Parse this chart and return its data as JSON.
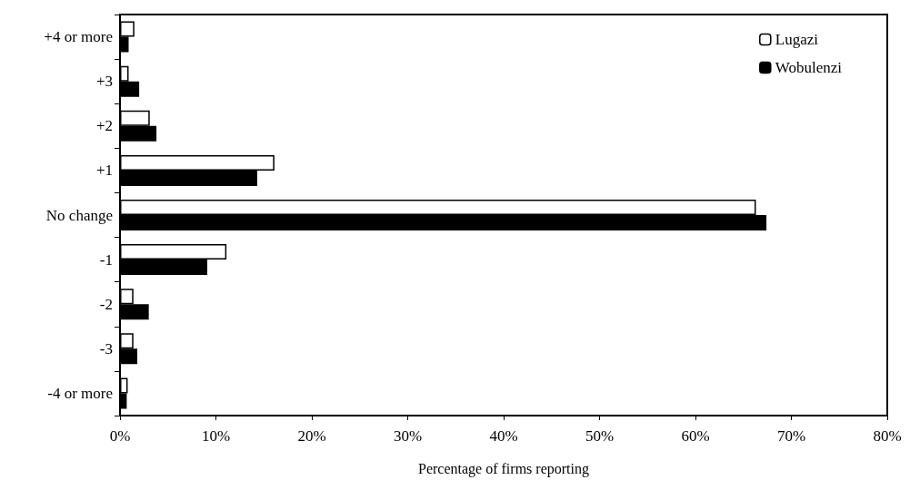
{
  "chart_data": {
    "type": "bar",
    "orientation": "horizontal",
    "xlabel": "Percentage of firms reporting",
    "categories": [
      "+4 or more",
      "+3",
      "+2",
      "+1",
      "No change",
      "-1",
      "-2",
      "-3",
      "-4 or more"
    ],
    "series": [
      {
        "name": "Lugazi",
        "color": "#ffffff",
        "values": [
          1.5,
          0.9,
          3.1,
          16.1,
          66.3,
          11.1,
          1.4,
          1.4,
          0.8
        ]
      },
      {
        "name": "Wobulenzi",
        "color": "#000000",
        "values": [
          0.9,
          2.0,
          3.8,
          14.3,
          67.4,
          9.1,
          3.0,
          1.8,
          0.7
        ]
      }
    ],
    "xlim": [
      0,
      80
    ],
    "xticks": [
      {
        "value": 0,
        "label": "0%"
      },
      {
        "value": 10,
        "label": "10%"
      },
      {
        "value": 20,
        "label": "20%"
      },
      {
        "value": 30,
        "label": "30%"
      },
      {
        "value": 40,
        "label": "40%"
      },
      {
        "value": 50,
        "label": "50%"
      },
      {
        "value": 60,
        "label": "60%"
      },
      {
        "value": 70,
        "label": "70%"
      },
      {
        "value": 80,
        "label": "80%"
      }
    ],
    "grid": false,
    "legend": "top right"
  }
}
